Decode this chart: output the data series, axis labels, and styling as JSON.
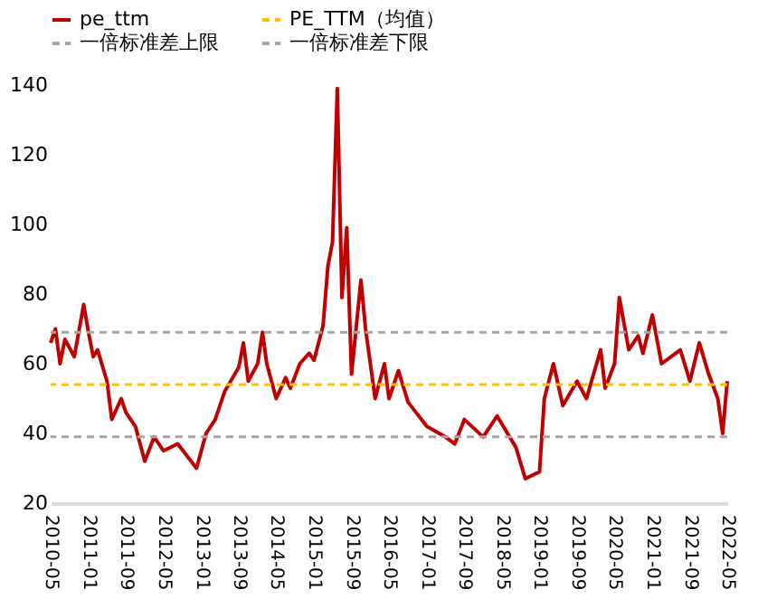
{
  "chart_data": {
    "type": "line",
    "x": [
      "2010-05",
      "2010-06",
      "2010-07",
      "2010-08",
      "2010-10",
      "2010-12",
      "2011-01",
      "2011-02",
      "2011-03",
      "2011-05",
      "2011-06",
      "2011-08",
      "2011-09",
      "2011-11",
      "2012-01",
      "2012-03",
      "2012-05",
      "2012-08",
      "2012-12",
      "2013-02",
      "2013-04",
      "2013-06",
      "2013-09",
      "2013-10",
      "2013-11",
      "2014-01",
      "2014-02",
      "2014-03",
      "2014-05",
      "2014-07",
      "2014-08",
      "2014-10",
      "2014-12",
      "2015-01",
      "2015-03",
      "2015-04",
      "2015-05",
      "2015-06",
      "2015-07",
      "2015-08",
      "2015-09",
      "2015-11",
      "2015-12",
      "2016-02",
      "2016-04",
      "2016-05",
      "2016-07",
      "2016-09",
      "2017-01",
      "2017-05",
      "2017-07",
      "2017-09",
      "2018-01",
      "2018-04",
      "2018-08",
      "2018-10",
      "2019-01",
      "2019-02",
      "2019-04",
      "2019-06",
      "2019-09",
      "2019-11",
      "2020-02",
      "2020-03",
      "2020-05",
      "2020-06",
      "2020-08",
      "2020-10",
      "2020-11",
      "2021-01",
      "2021-03",
      "2021-05",
      "2021-07",
      "2021-09",
      "2021-11",
      "2022-01",
      "2022-03",
      "2022-04",
      "2022-05"
    ],
    "series": [
      {
        "name": "pe_ttm",
        "color": "#c00000",
        "values": [
          66,
          70,
          60,
          67,
          62,
          77,
          69,
          62,
          64,
          55,
          44,
          50,
          46,
          42,
          32,
          39,
          35,
          37,
          30,
          40,
          44,
          52,
          59,
          66,
          55,
          60,
          69,
          60,
          50,
          56,
          53,
          60,
          63,
          61,
          71,
          88,
          95,
          139,
          79,
          99,
          57,
          84,
          70,
          50,
          60,
          50,
          58,
          49,
          42,
          39,
          37,
          44,
          39,
          45,
          36,
          27,
          29,
          50,
          60,
          48,
          55,
          50,
          64,
          53,
          60,
          79,
          64,
          68,
          63,
          74,
          60,
          62,
          64,
          55,
          66,
          57,
          50,
          40,
          55
        ]
      }
    ],
    "ref_lines": [
      {
        "axis": "y",
        "value": 54,
        "label": "PE_TTM（均值）",
        "color": "#ffc000",
        "line_style": "dashed"
      },
      {
        "axis": "y",
        "value": 69,
        "label": "一倍标准差上限",
        "color": "#a5a5a5",
        "line_style": "dashed"
      },
      {
        "axis": "y",
        "value": 39,
        "label": "一倍标准差下限",
        "color": "#a5a5a5",
        "line_style": "dashed"
      }
    ],
    "xlim": [
      "2010-05",
      "2022-05"
    ],
    "xticks": [
      "2010-05",
      "2011-01",
      "2011-09",
      "2012-05",
      "2013-01",
      "2013-09",
      "2014-05",
      "2015-01",
      "2015-09",
      "2016-05",
      "2017-01",
      "2017-09",
      "2018-05",
      "2019-01",
      "2019-09",
      "2020-05",
      "2021-01",
      "2021-09",
      "2022-05"
    ],
    "ylim": [
      20,
      140
    ],
    "yticks": [
      20,
      40,
      60,
      80,
      100,
      120,
      140
    ],
    "legend": "top",
    "grid": false,
    "line_style": "solid",
    "marker": "none"
  }
}
